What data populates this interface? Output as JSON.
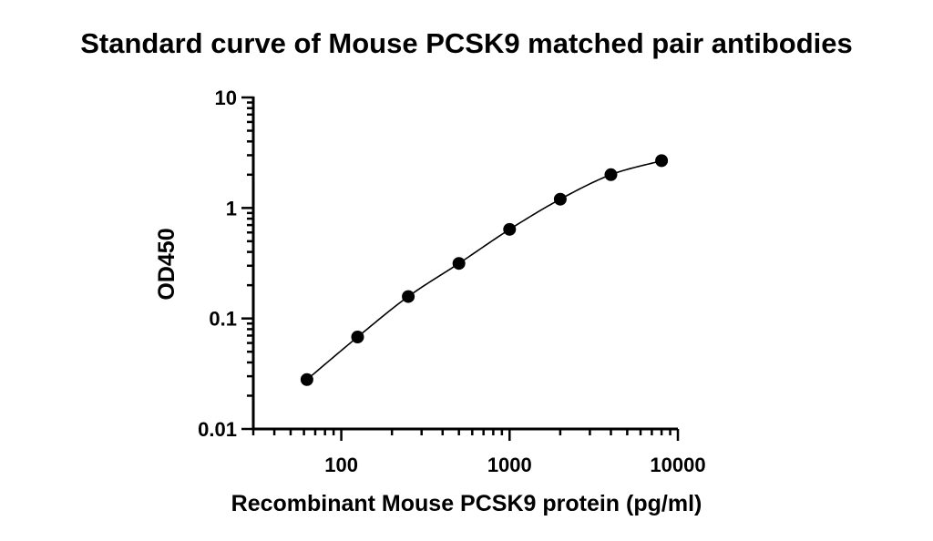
{
  "chart_data": {
    "type": "scatter",
    "title": "Standard curve of Mouse PCSK9 matched pair antibodies",
    "xlabel": "Recombinant Mouse PCSK9 protein (pg/ml)",
    "ylabel": "OD450",
    "x_scale": "log",
    "y_scale": "log",
    "xlim": [
      30,
      10000
    ],
    "ylim": [
      0.01,
      10
    ],
    "x_ticks": [
      100,
      1000,
      10000
    ],
    "x_tick_labels": [
      "100",
      "1000",
      "10000"
    ],
    "y_ticks": [
      0.01,
      0.1,
      1,
      10
    ],
    "y_tick_labels": [
      "0.01",
      "0.1",
      "1",
      "10"
    ],
    "grid": false,
    "fit_curve": true,
    "x": [
      62.5,
      125,
      250,
      500,
      1000,
      2000,
      4000,
      8000
    ],
    "y": [
      0.028,
      0.068,
      0.158,
      0.315,
      0.64,
      1.2,
      2.0,
      2.68
    ]
  }
}
